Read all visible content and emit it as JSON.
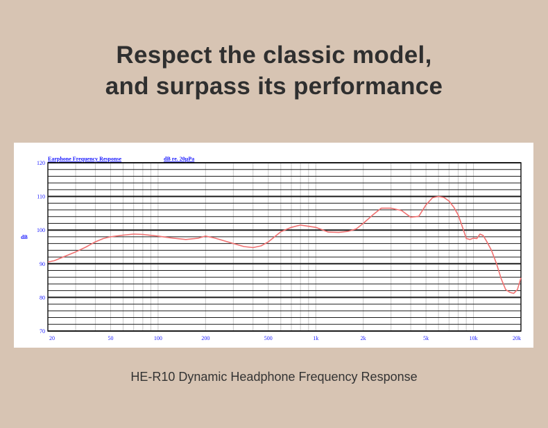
{
  "headline": {
    "line1": "Respect the classic model,",
    "line2": "and surpass its performance"
  },
  "caption": "HE-R10 Dynamic Headphone Frequency Response",
  "colors": {
    "background": "#d7c4b3",
    "curve": "#f07070",
    "axis_text": "#1a1aff",
    "grid_major": "#1a1a1a",
    "grid_minor": "#c8c8c8"
  },
  "chart_data": {
    "type": "line",
    "title": "Earphone Frequency Response",
    "subtitle": "dB re. 20µPa",
    "xlabel": "",
    "ylabel": "dB",
    "xscale": "log",
    "xlim": [
      20,
      20000
    ],
    "ylim": [
      70,
      120
    ],
    "grid": true,
    "y_ticks": [
      120,
      110,
      100,
      90,
      80,
      70
    ],
    "x_ticks": [
      {
        "value": 20,
        "label": "20"
      },
      {
        "value": 50,
        "label": "50"
      },
      {
        "value": 100,
        "label": "100"
      },
      {
        "value": 200,
        "label": "200"
      },
      {
        "value": 500,
        "label": "500"
      },
      {
        "value": 1000,
        "label": "1k"
      },
      {
        "value": 2000,
        "label": "2k"
      },
      {
        "value": 5000,
        "label": "5k"
      },
      {
        "value": 10000,
        "label": "10k"
      },
      {
        "value": 20000,
        "label": "20k"
      }
    ],
    "series": [
      {
        "name": "HE-R10",
        "x": [
          20,
          22,
          25,
          30,
          35,
          40,
          45,
          50,
          60,
          70,
          80,
          100,
          120,
          150,
          180,
          200,
          230,
          300,
          350,
          400,
          450,
          500,
          600,
          700,
          800,
          1000,
          1200,
          1400,
          1600,
          1800,
          2000,
          2300,
          2600,
          3000,
          3500,
          4000,
          4500,
          5000,
          5500,
          6000,
          6500,
          7000,
          7500,
          8000,
          8500,
          9000,
          9500,
          10000,
          10500,
          11000,
          11500,
          12000,
          13000,
          14000,
          15000,
          16000,
          17000,
          18000,
          19000,
          20000
        ],
        "values": [
          90.5,
          90.9,
          92,
          93.5,
          95,
          96.5,
          97.5,
          98,
          98.5,
          98.8,
          98.7,
          98.2,
          97.7,
          97.2,
          97.6,
          98.2,
          97.6,
          96,
          95.1,
          94.8,
          95.3,
          96.5,
          99.5,
          100.8,
          101.5,
          100.8,
          99.4,
          99.3,
          99.6,
          100.3,
          102,
          104.5,
          106.5,
          106.5,
          105.8,
          103.8,
          104.1,
          107.5,
          109.6,
          110,
          109.7,
          108.6,
          106.8,
          104.5,
          101,
          97.5,
          97.2,
          97.6,
          97.5,
          98.8,
          98.4,
          97,
          94,
          90,
          85.5,
          82.3,
          81.5,
          81.2,
          82.3,
          85.8
        ]
      }
    ]
  }
}
